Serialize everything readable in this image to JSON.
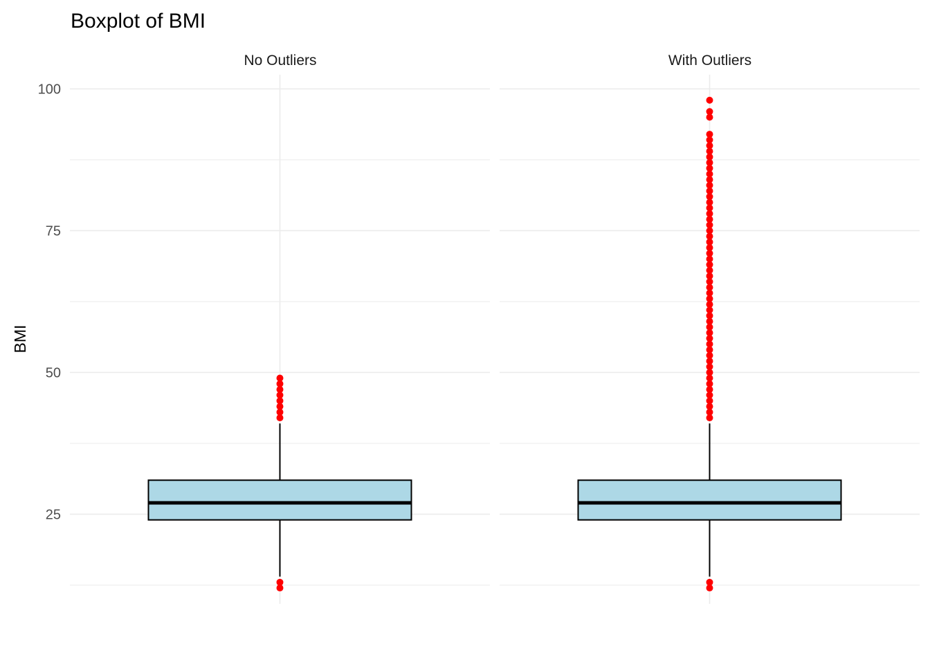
{
  "chart_data": {
    "type": "boxplot",
    "title": "Boxplot of BMI",
    "xlabel": "",
    "ylabel": "BMI",
    "ylim": [
      9.2,
      102.5
    ],
    "yticks": [
      25,
      50,
      75,
      100
    ],
    "yminor": [
      12.5,
      37.5,
      62.5,
      87.5
    ],
    "grid": true,
    "colors": {
      "box_fill": "#add8e6",
      "box_stroke": "#000000",
      "outlier": "#ff0000",
      "grid": "#ebebeb"
    },
    "panels": [
      {
        "name": "No Outliers",
        "lower_whisker": 14,
        "q1": 24,
        "median": 27,
        "q3": 31,
        "upper_whisker": 41,
        "outliers": [
          12,
          13,
          42,
          43,
          44,
          45,
          46,
          47,
          48,
          49
        ]
      },
      {
        "name": "With Outliers",
        "lower_whisker": 14,
        "q1": 24,
        "median": 27,
        "q3": 31,
        "upper_whisker": 41,
        "outliers": [
          12,
          13,
          42,
          43,
          44,
          45,
          46,
          47,
          48,
          49,
          50,
          51,
          52,
          53,
          54,
          55,
          56,
          57,
          58,
          59,
          60,
          61,
          62,
          63,
          64,
          65,
          66,
          67,
          68,
          69,
          70,
          71,
          72,
          73,
          74,
          75,
          76,
          77,
          78,
          79,
          80,
          81,
          82,
          83,
          84,
          85,
          86,
          87,
          88,
          89,
          90,
          91,
          92,
          95,
          96,
          98
        ]
      }
    ]
  }
}
